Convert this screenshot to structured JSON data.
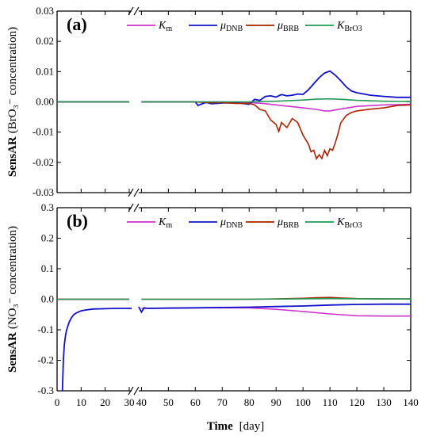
{
  "colors": {
    "Km": "#cc33cc",
    "muDNB": "#1111cc",
    "muBRB": "#aa2200",
    "KBrO3": "#229955",
    "axis": "#000000"
  },
  "xaxis": {
    "title_bold": "Time",
    "title_rest": "[day]",
    "ticks": [
      "0",
      "10",
      "20",
      "30",
      "40",
      "50",
      "60",
      "70",
      "80",
      "90",
      "100",
      "110",
      "120",
      "130",
      "140"
    ]
  },
  "legend": [
    {
      "key": "Km",
      "main": "K",
      "sub": "m"
    },
    {
      "key": "muDNB",
      "main": "μ",
      "sub": "DNB"
    },
    {
      "key": "muBRB",
      "main": "μ",
      "sub": "BRB"
    },
    {
      "key": "KBrO3",
      "main": "K",
      "sub": "BrO3"
    }
  ],
  "chart_data": [
    {
      "type": "line",
      "panel_label": "(a)",
      "ylabel_bold": "SensAR",
      "ylabel_rest": "(BrO₃⁻ concentration)",
      "ylim": [
        -0.03,
        0.03
      ],
      "xlim": [
        0,
        140
      ],
      "axis_break": [
        31,
        39
      ],
      "yticks": [
        "0.03",
        "0.02",
        "0.01",
        "0.00",
        "-0.01",
        "-0.02",
        "-0.03"
      ],
      "ytick_values": [
        0.03,
        0.02,
        0.01,
        0.0,
        -0.01,
        -0.02,
        -0.03
      ],
      "series": [
        {
          "name": "Km",
          "x": [
            0,
            30,
            40,
            60,
            70,
            80,
            85,
            90,
            95,
            100,
            105,
            108,
            110,
            115,
            120,
            130,
            140
          ],
          "y": [
            0,
            0,
            0,
            0,
            0,
            -0.0002,
            -0.0005,
            -0.001,
            -0.0015,
            -0.002,
            -0.0025,
            -0.003,
            -0.003,
            -0.0022,
            -0.0015,
            -0.001,
            -0.0008
          ]
        },
        {
          "name": "muDNB",
          "x": [
            0,
            30,
            40,
            60,
            61,
            62,
            64,
            66,
            70,
            75,
            80,
            82,
            84,
            86,
            88,
            90,
            92,
            94,
            96,
            98,
            100,
            102,
            104,
            106,
            108,
            110,
            112,
            114,
            116,
            118,
            120,
            125,
            130,
            135,
            140
          ],
          "y": [
            0,
            0,
            0,
            0,
            -0.0012,
            -0.0008,
            -0.0002,
            -0.0006,
            -0.0004,
            -0.0002,
            -0.0008,
            0.0008,
            0.0005,
            0.0018,
            0.002,
            0.0016,
            0.0024,
            0.002,
            0.0022,
            0.0026,
            0.0025,
            0.004,
            0.006,
            0.008,
            0.0095,
            0.0102,
            0.0088,
            0.007,
            0.005,
            0.0036,
            0.003,
            0.0022,
            0.0018,
            0.0015,
            0.0015
          ]
        },
        {
          "name": "muBRB",
          "x": [
            0,
            30,
            40,
            60,
            65,
            70,
            75,
            80,
            82,
            84,
            86,
            88,
            90,
            91,
            92,
            94,
            96,
            98,
            100,
            101,
            102,
            103,
            104,
            105,
            106,
            107,
            108,
            109,
            110,
            111,
            112,
            113,
            114,
            116,
            118,
            120,
            125,
            130,
            135,
            140
          ],
          "y": [
            0,
            0,
            0,
            0,
            -0.0003,
            -0.0003,
            -0.0005,
            -0.0005,
            -0.001,
            -0.0025,
            -0.003,
            -0.006,
            -0.0075,
            -0.0098,
            -0.0068,
            -0.0085,
            -0.0055,
            -0.0068,
            -0.011,
            -0.0125,
            -0.014,
            -0.0165,
            -0.016,
            -0.0188,
            -0.0175,
            -0.0187,
            -0.016,
            -0.0178,
            -0.0155,
            -0.016,
            -0.0135,
            -0.0105,
            -0.007,
            -0.0045,
            -0.0035,
            -0.003,
            -0.0024,
            -0.002,
            -0.0012,
            -0.001
          ]
        },
        {
          "name": "KBrO3",
          "x": [
            0,
            30,
            40,
            60,
            80,
            90,
            100,
            105,
            110,
            115,
            120,
            130,
            140
          ],
          "y": [
            0,
            0,
            0,
            0,
            0,
            0.0002,
            0.0006,
            0.0009,
            0.001,
            0.0008,
            0.0005,
            0.0002,
            0.0001
          ]
        }
      ]
    },
    {
      "type": "line",
      "panel_label": "(b)",
      "ylabel_bold": "SensAR",
      "ylabel_rest": "(NO₃⁻ concentration)",
      "ylim": [
        -0.3,
        0.3
      ],
      "xlim": [
        0,
        140
      ],
      "axis_break": [
        31,
        39
      ],
      "yticks": [
        "0.3",
        "0.2",
        "0.1",
        "0.0",
        "-0.1",
        "-0.2",
        "-0.3"
      ],
      "ytick_values": [
        0.3,
        0.2,
        0.1,
        0.0,
        -0.1,
        -0.2,
        -0.3
      ],
      "series": [
        {
          "name": "Km",
          "x": [
            0,
            30,
            40,
            60,
            80,
            90,
            100,
            110,
            120,
            130,
            140
          ],
          "y": [
            0,
            0,
            -0.03,
            -0.028,
            -0.028,
            -0.033,
            -0.04,
            -0.048,
            -0.054,
            -0.055,
            -0.055
          ]
        },
        {
          "name": "muDNB",
          "x": [
            2.2,
            2.6,
            3,
            3.5,
            4,
            5,
            6,
            7,
            8,
            10,
            12,
            15,
            20,
            25,
            30,
            31,
            39,
            40,
            41,
            42,
            50,
            60,
            70,
            80,
            90,
            100,
            110,
            120,
            130,
            140
          ],
          "y": [
            -0.3,
            -0.2,
            -0.15,
            -0.12,
            -0.1,
            -0.075,
            -0.06,
            -0.05,
            -0.045,
            -0.038,
            -0.035,
            -0.032,
            -0.031,
            -0.03,
            -0.03,
            -0.03,
            -0.025,
            -0.042,
            -0.028,
            -0.03,
            -0.029,
            -0.028,
            -0.027,
            -0.026,
            -0.024,
            -0.022,
            -0.019,
            -0.017,
            -0.016,
            -0.016
          ]
        },
        {
          "name": "muBRB",
          "x": [
            0,
            30,
            40,
            80,
            90,
            100,
            105,
            110,
            115,
            120,
            130,
            140
          ],
          "y": [
            0,
            0,
            0,
            0,
            0.001,
            0.003,
            0.005,
            0.006,
            0.004,
            0.002,
            0.001,
            0.001
          ]
        },
        {
          "name": "KBrO3",
          "x": [
            0,
            30,
            40,
            80,
            100,
            110,
            120,
            140
          ],
          "y": [
            0,
            0,
            0,
            0,
            0.0015,
            0.002,
            0.0015,
            0.001
          ]
        }
      ]
    }
  ]
}
